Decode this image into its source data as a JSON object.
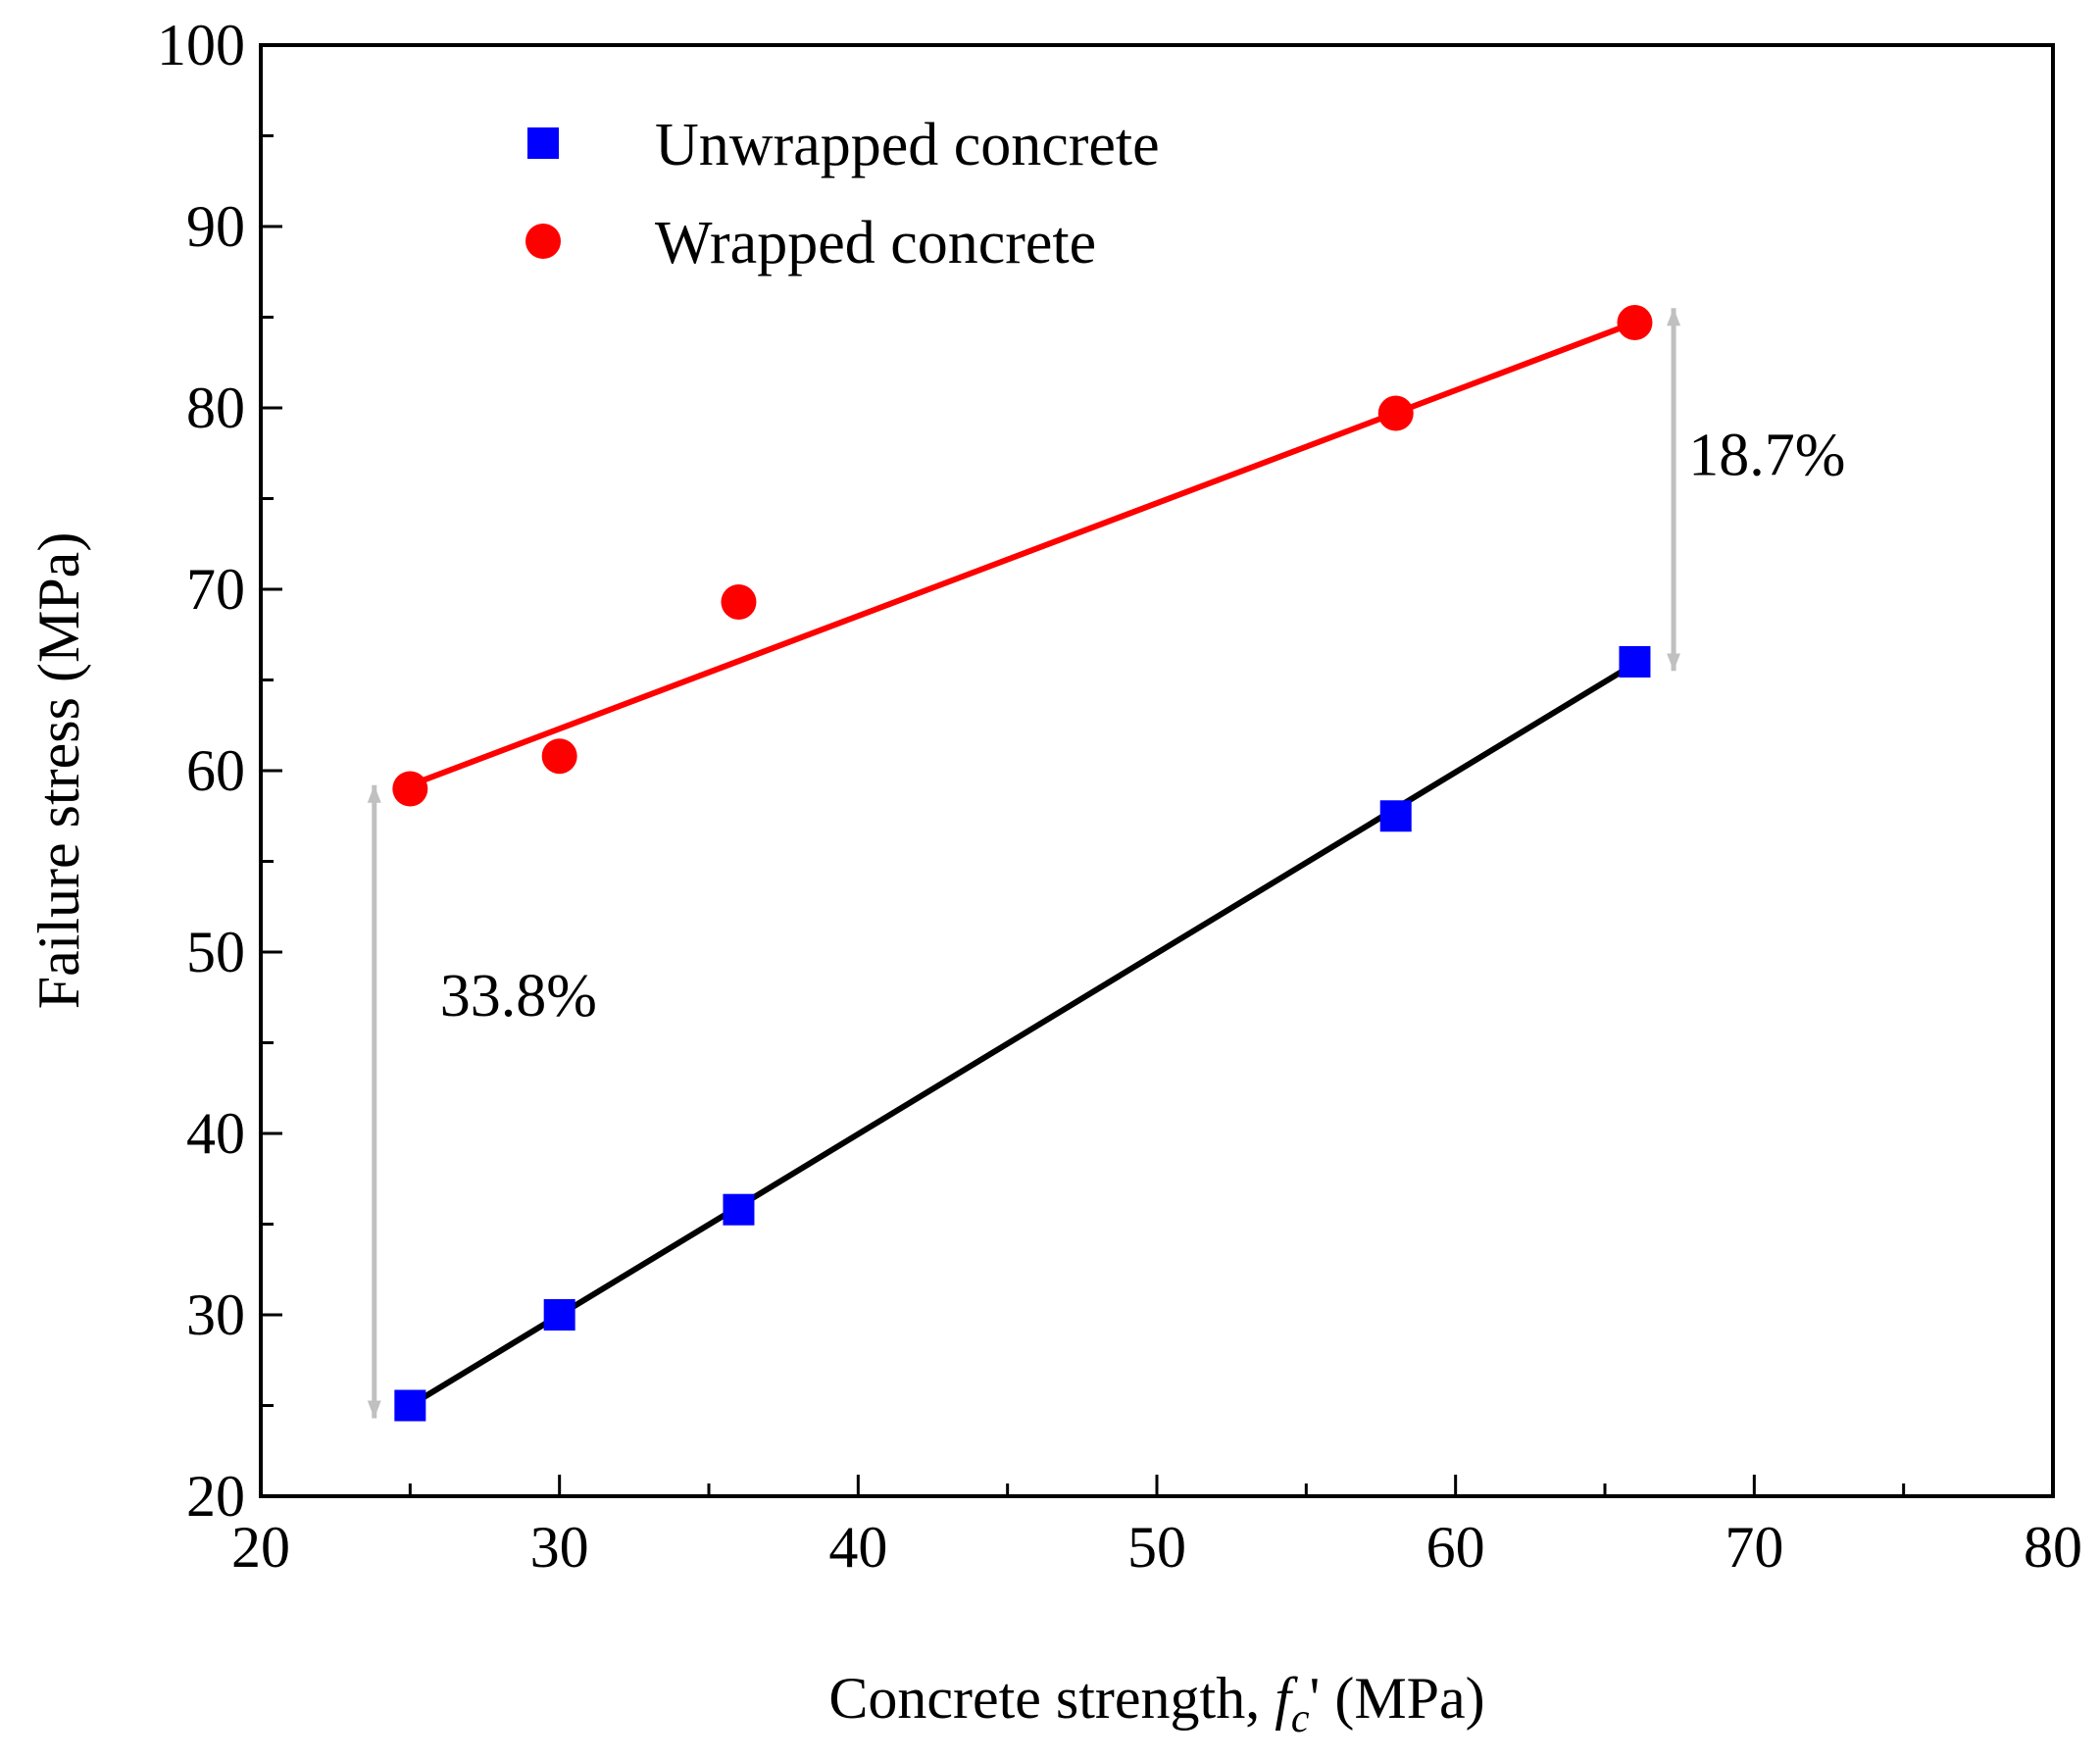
{
  "chart_data": {
    "type": "scatter",
    "title": "",
    "xlabel": {
      "prefix": "Concrete strength, ",
      "symbol": "f",
      "subscript": "c",
      "prime": "'",
      "unit": " (MPa)"
    },
    "ylabel": "Failure stress (MPa)",
    "xlim": [
      20,
      80
    ],
    "ylim": [
      20,
      100
    ],
    "xticks": [
      20,
      30,
      40,
      50,
      60,
      70,
      80
    ],
    "yticks": [
      20,
      30,
      40,
      50,
      60,
      70,
      80,
      90,
      100
    ],
    "xtick_labels": [
      "20",
      "30",
      "40",
      "50",
      "60",
      "70",
      "80"
    ],
    "ytick_labels": [
      "20",
      "30",
      "40",
      "50",
      "60",
      "70",
      "80",
      "90",
      "100"
    ],
    "x_minor_step": 5,
    "y_minor_step": 5,
    "grid": false,
    "legend_position": "top-left",
    "series": [
      {
        "name": "Unwrapped concrete",
        "marker": "square",
        "color": "#0000FF",
        "x": [
          25,
          30,
          36,
          58,
          66
        ],
        "y": [
          25,
          30,
          35.8,
          57.5,
          66
        ],
        "fit": {
          "color": "#000000",
          "x": [
            25,
            66
          ],
          "y": [
            25,
            65.9
          ]
        }
      },
      {
        "name": "Wrapped concrete",
        "marker": "circle",
        "color": "#FF0000",
        "x": [
          25,
          30,
          36,
          58,
          66
        ],
        "y": [
          59,
          60.8,
          69.3,
          79.7,
          84.7
        ],
        "fit": {
          "color": "#FF0000",
          "x": [
            25,
            66
          ],
          "y": [
            59.2,
            84.7
          ]
        }
      }
    ],
    "annotations": [
      {
        "text": "33.8%",
        "arrow_x": 23.8,
        "arrow_y": [
          24.3,
          59.2
        ],
        "text_x": 26,
        "text_y": 46.5,
        "color": "#C0C0C0"
      },
      {
        "text": "18.7%",
        "arrow_x": 67.3,
        "arrow_y": [
          65.5,
          85.5
        ],
        "text_x": 67.8,
        "text_y": 76.3,
        "color": "#C0C0C0"
      }
    ]
  }
}
